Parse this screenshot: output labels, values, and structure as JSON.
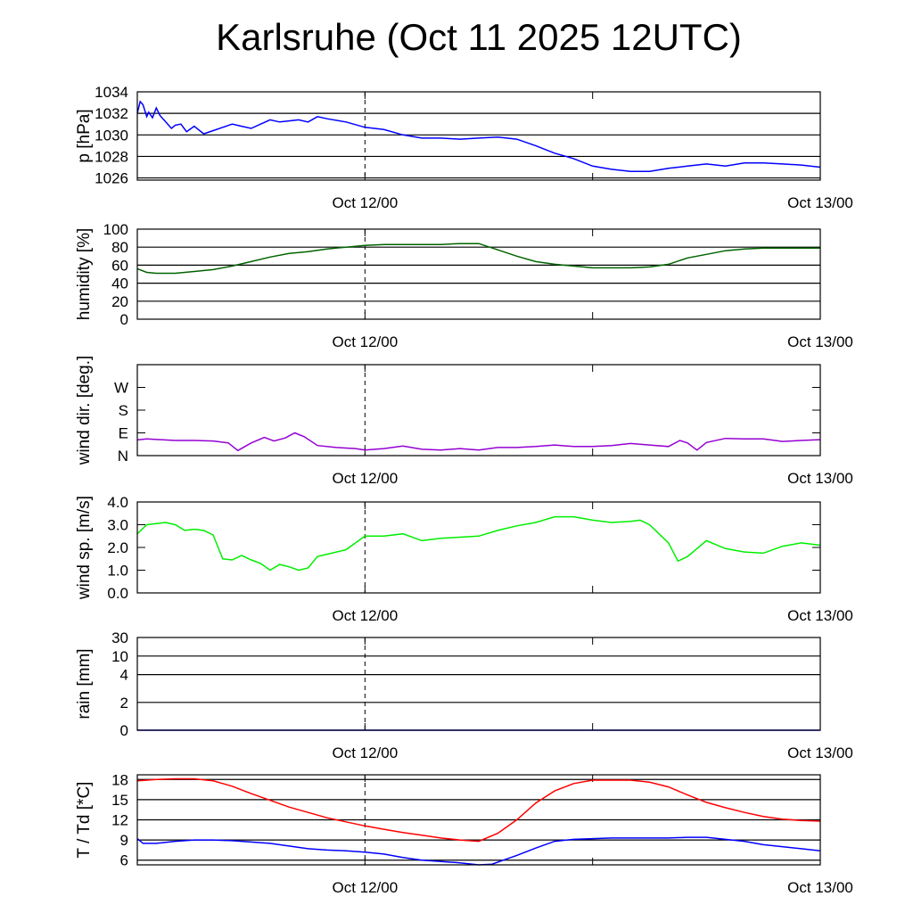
{
  "title": "Karlsruhe (Oct 11 2025 12UTC)",
  "colors": {
    "pressure": "#0000ff",
    "humidity": "#006400",
    "wind_dir": "#9400d3",
    "wind_speed": "#00ee00",
    "temperature": "#ff0000",
    "dewpoint": "#0000ff"
  },
  "chart_data": [
    {
      "type": "line",
      "ylabel": "p [hPa]",
      "x_ticklabels": [
        "Oct 12/00",
        "Oct 13/00"
      ],
      "xlim": [
        0,
        36
      ],
      "ylim": [
        1025.8,
        1034
      ],
      "yticks": [
        1026,
        1028,
        1030,
        1032,
        1034
      ],
      "ytick_labels": [
        "1026",
        "1028",
        "1030",
        "1032",
        "1034"
      ],
      "grid": true,
      "series": [
        {
          "x": [
            0,
            0.15,
            0.3,
            0.5,
            0.6,
            0.8,
            1.0,
            1.2,
            1.5,
            1.8,
            2.0,
            2.3,
            2.6,
            3.0,
            3.5,
            4.0,
            4.5,
            5.0,
            5.5,
            6.0,
            6.5,
            7.0,
            7.5,
            8.0,
            8.5,
            9.0,
            9.5,
            10.0,
            11.0,
            12.0,
            13.0,
            14.0,
            15.0,
            16.0,
            17.0,
            18.0,
            19.0,
            20.0,
            21.0,
            22.0,
            23.0,
            24.0,
            25.0,
            26.0,
            27.0,
            28.0,
            29.0,
            30.0,
            31.0,
            32.0,
            33.0,
            34.0,
            35.0,
            36.0
          ],
          "y": [
            1032.0,
            1033.1,
            1032.8,
            1031.7,
            1032.1,
            1031.6,
            1032.5,
            1031.8,
            1031.2,
            1030.6,
            1030.9,
            1031.0,
            1030.3,
            1030.8,
            1030.1,
            1030.4,
            1030.7,
            1031.0,
            1030.8,
            1030.6,
            1031.0,
            1031.4,
            1031.2,
            1031.3,
            1031.4,
            1031.2,
            1031.7,
            1031.5,
            1031.2,
            1030.7,
            1030.5,
            1030.0,
            1029.7,
            1029.7,
            1029.6,
            1029.7,
            1029.8,
            1029.6,
            1029.0,
            1028.3,
            1027.8,
            1027.1,
            1026.8,
            1026.6,
            1026.6,
            1026.9,
            1027.1,
            1027.3,
            1027.1,
            1027.4,
            1027.4,
            1027.3,
            1027.2,
            1027.0
          ],
          "color_key": "pressure"
        }
      ]
    },
    {
      "type": "line",
      "ylabel": "humidity [%]",
      "x_ticklabels": [
        "Oct 12/00",
        "Oct 13/00"
      ],
      "xlim": [
        0,
        36
      ],
      "ylim": [
        0,
        100
      ],
      "yticks": [
        0,
        20,
        40,
        60,
        80,
        100
      ],
      "ytick_labels": [
        "0",
        "20",
        "40",
        "60",
        "80",
        "100"
      ],
      "grid": true,
      "series": [
        {
          "x": [
            0,
            0.5,
            1,
            2,
            3,
            4,
            5,
            6,
            7,
            8,
            9,
            10,
            11,
            12,
            13,
            14,
            15,
            16,
            17,
            18,
            19,
            20,
            21,
            22,
            23,
            24,
            25,
            26,
            27,
            28,
            29,
            30,
            31,
            32,
            33,
            34,
            35,
            36
          ],
          "y": [
            56,
            52,
            51,
            51,
            53,
            55,
            59,
            64,
            69,
            73,
            75,
            78,
            80,
            82,
            83,
            83,
            83,
            83,
            84,
            84,
            77,
            70,
            64,
            61,
            59,
            57,
            57,
            57,
            58,
            61,
            68,
            72,
            76,
            78,
            79,
            79,
            79,
            79
          ],
          "color_key": "humidity"
        }
      ]
    },
    {
      "type": "line",
      "ylabel": "wind dir. [deg.]",
      "x_ticklabels": [
        "Oct 12/00",
        "Oct 13/00"
      ],
      "xlim": [
        0,
        36
      ],
      "ylim": [
        0,
        360
      ],
      "yticks": [
        0,
        90,
        180,
        270
      ],
      "ytick_labels": [
        "N",
        "E",
        "S",
        "W"
      ],
      "grid": false,
      "series": [
        {
          "x": [
            0,
            0.5,
            1,
            2,
            3,
            4,
            4.8,
            5.3,
            6,
            6.7,
            7.2,
            7.8,
            8.3,
            8.8,
            9.5,
            10.5,
            11.5,
            12,
            13,
            14,
            15,
            16,
            17,
            18,
            19,
            20,
            21,
            22,
            23,
            24,
            25,
            26,
            27,
            28,
            28.6,
            29,
            29.5,
            30,
            31,
            32,
            33,
            34,
            35,
            36
          ],
          "y": [
            62,
            66,
            64,
            60,
            60,
            58,
            50,
            20,
            50,
            72,
            58,
            70,
            90,
            75,
            40,
            32,
            28,
            22,
            28,
            38,
            25,
            22,
            28,
            22,
            32,
            32,
            36,
            42,
            36,
            36,
            40,
            48,
            42,
            36,
            60,
            50,
            22,
            52,
            68,
            66,
            66,
            56,
            60,
            63
          ],
          "color_key": "wind_dir"
        }
      ]
    },
    {
      "type": "line",
      "ylabel": "wind sp. [m/s]",
      "x_ticklabels": [
        "Oct 12/00",
        "Oct 13/00"
      ],
      "xlim": [
        0,
        36
      ],
      "ylim": [
        0,
        4.0
      ],
      "yticks": [
        0,
        1.0,
        2.0,
        3.0,
        4.0
      ],
      "ytick_labels": [
        "0.0",
        "1.0",
        "2.0",
        "3.0",
        "4.0"
      ],
      "grid": false,
      "series": [
        {
          "x": [
            0,
            0.5,
            1,
            1.5,
            2,
            2.5,
            3,
            3.5,
            4,
            4.5,
            5,
            5.5,
            6,
            6.5,
            7,
            7.5,
            8,
            8.5,
            9,
            9.5,
            10,
            10.5,
            11,
            11.5,
            12,
            13,
            14,
            15,
            16,
            17,
            18,
            19,
            20,
            21,
            22,
            23,
            24,
            25,
            26,
            26.5,
            27,
            27.5,
            28,
            28.5,
            29,
            30,
            31,
            32,
            33,
            34,
            35,
            36
          ],
          "y": [
            2.6,
            3.0,
            3.05,
            3.1,
            3.0,
            2.75,
            2.8,
            2.75,
            2.55,
            1.5,
            1.45,
            1.65,
            1.45,
            1.3,
            1.0,
            1.25,
            1.15,
            1.0,
            1.1,
            1.6,
            1.7,
            1.8,
            1.9,
            2.2,
            2.5,
            2.5,
            2.6,
            2.3,
            2.4,
            2.45,
            2.5,
            2.75,
            2.95,
            3.1,
            3.35,
            3.35,
            3.2,
            3.1,
            3.15,
            3.2,
            3.0,
            2.6,
            2.2,
            1.4,
            1.6,
            2.3,
            1.95,
            1.8,
            1.75,
            2.05,
            2.2,
            2.1
          ],
          "color_key": "wind_speed"
        }
      ]
    },
    {
      "type": "line",
      "ylabel": "rain [mm]",
      "x_ticklabels": [
        "Oct 12/00",
        "Oct 13/00"
      ],
      "xlim": [
        0,
        36
      ],
      "ylim": [
        0,
        30
      ],
      "yticks": [
        0,
        2,
        4,
        10,
        30
      ],
      "ytick_labels": [
        "0",
        "2",
        "4",
        "10",
        "30"
      ],
      "grid": true,
      "series": [
        {
          "x": [
            0,
            36
          ],
          "y": [
            0,
            0
          ],
          "color_key": "pressure"
        }
      ]
    },
    {
      "type": "line",
      "ylabel": "T / Td [*C]",
      "x_ticklabels": [
        "Oct 12/00",
        "Oct 13/00"
      ],
      "xlim": [
        0,
        36
      ],
      "ylim": [
        5.3,
        18.7
      ],
      "yticks": [
        6,
        9,
        12,
        15,
        18
      ],
      "ytick_labels": [
        "6",
        "9",
        "12",
        "15",
        "18"
      ],
      "grid": true,
      "series": [
        {
          "x": [
            0,
            1,
            2,
            3,
            4,
            5,
            6,
            7,
            8,
            9,
            10,
            11,
            12,
            13,
            14,
            15,
            16,
            17,
            18,
            19,
            20,
            21,
            22,
            23,
            24,
            25,
            26,
            27,
            28,
            29,
            30,
            31,
            32,
            33,
            34,
            35,
            36
          ],
          "y": [
            17.8,
            18.0,
            18.1,
            18.1,
            17.8,
            17.0,
            15.9,
            14.9,
            13.9,
            13.1,
            12.3,
            11.7,
            11.1,
            10.6,
            10.1,
            9.7,
            9.3,
            9.0,
            8.8,
            10.0,
            12.0,
            14.5,
            16.3,
            17.4,
            17.9,
            17.9,
            17.9,
            17.6,
            16.9,
            15.7,
            14.6,
            13.8,
            13.1,
            12.5,
            12.1,
            11.9,
            11.8
          ],
          "color_key": "temperature"
        },
        {
          "x": [
            0,
            0.3,
            1,
            2,
            3,
            4,
            5,
            6,
            7,
            8,
            9,
            10,
            11,
            12,
            13,
            14,
            15,
            16,
            17,
            18,
            18.7,
            19.5,
            20,
            21,
            22,
            23,
            24,
            25,
            26,
            27,
            28,
            29,
            30,
            31,
            32,
            33,
            34,
            35,
            36
          ],
          "y": [
            9.2,
            8.5,
            8.5,
            8.8,
            9.0,
            9.0,
            8.9,
            8.7,
            8.5,
            8.1,
            7.7,
            7.5,
            7.4,
            7.2,
            6.9,
            6.4,
            6.0,
            5.8,
            5.6,
            5.3,
            5.4,
            6.2,
            6.7,
            7.8,
            8.8,
            9.1,
            9.2,
            9.3,
            9.3,
            9.3,
            9.3,
            9.4,
            9.4,
            9.1,
            8.8,
            8.3,
            8.0,
            7.7,
            7.4
          ],
          "color_key": "dewpoint"
        }
      ]
    }
  ]
}
